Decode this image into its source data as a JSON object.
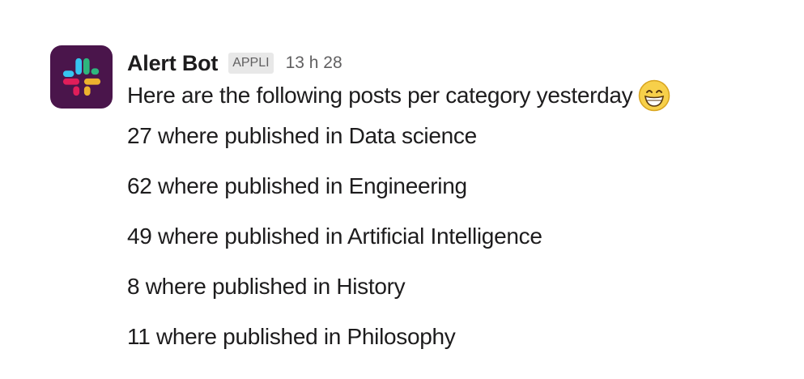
{
  "message": {
    "sender": "Alert Bot",
    "badge": "APPLI",
    "timestamp": "13 h 28",
    "intro": "Here are the following posts per category yesterday",
    "emoji": "grinning-face-emoji",
    "lines": [
      "27 where published in Data science",
      "62 where published in Engineering",
      "49 where published in Artificial Intelligence",
      "8 where published in History",
      "11 where published in Philosophy"
    ]
  },
  "colors": {
    "avatar_bg": "#4a154b",
    "slack_blue": "#36c5f0",
    "slack_green": "#2eb67d",
    "slack_yellow": "#ecb22e",
    "slack_red": "#e01e5a",
    "text": "#1d1c1d",
    "muted": "#616061",
    "badge_bg": "#e8e8e8"
  }
}
